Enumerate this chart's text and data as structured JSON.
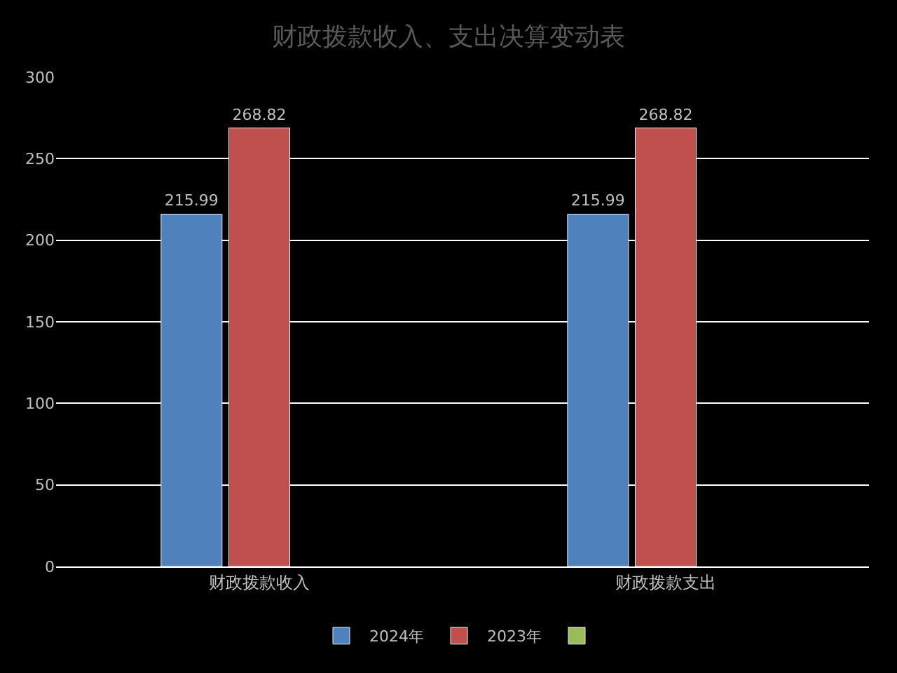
{
  "chart_data": {
    "type": "bar",
    "title": "财政拨款收入、支出决算变动表",
    "categories": [
      "财政拨款收入",
      "财政拨款支出"
    ],
    "series": [
      {
        "name": "2024年",
        "color": "#4f81bd",
        "values": [
          215.99,
          215.99
        ]
      },
      {
        "name": "2023年",
        "color": "#c0504d",
        "values": [
          268.82,
          268.82
        ]
      },
      {
        "color": "#9bbb59",
        "values": [
          null,
          null
        ]
      }
    ],
    "ylim": [
      0,
      300
    ],
    "yticks": [
      0,
      50,
      100,
      150,
      200,
      250,
      300
    ],
    "grid": "y",
    "legend": "bottom",
    "data_labels": true
  }
}
